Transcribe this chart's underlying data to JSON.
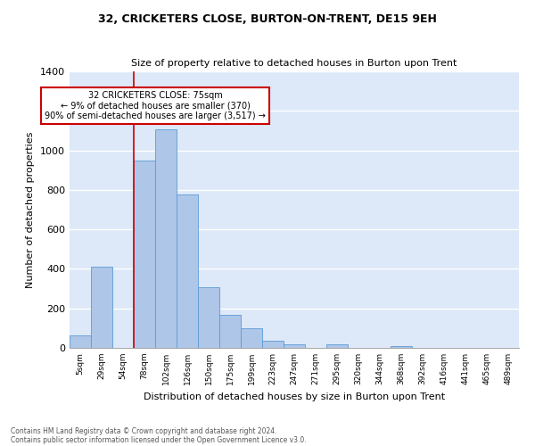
{
  "title": "32, CRICKETERS CLOSE, BURTON-ON-TRENT, DE15 9EH",
  "subtitle": "Size of property relative to detached houses in Burton upon Trent",
  "xlabel": "Distribution of detached houses by size in Burton upon Trent",
  "ylabel": "Number of detached properties",
  "categories": [
    "5sqm",
    "29sqm",
    "54sqm",
    "78sqm",
    "102sqm",
    "126sqm",
    "150sqm",
    "175sqm",
    "199sqm",
    "223sqm",
    "247sqm",
    "271sqm",
    "295sqm",
    "320sqm",
    "344sqm",
    "368sqm",
    "392sqm",
    "416sqm",
    "441sqm",
    "465sqm",
    "489sqm"
  ],
  "values": [
    65,
    410,
    0,
    950,
    1105,
    775,
    305,
    165,
    100,
    35,
    18,
    0,
    18,
    0,
    0,
    10,
    0,
    0,
    0,
    0,
    0
  ],
  "bar_color": "#aec6e8",
  "bar_edge_color": "#5b9bd5",
  "bg_color": "#dde8f8",
  "grid_color": "#ffffff",
  "vline_color": "#cc0000",
  "annotation_text": "32 CRICKETERS CLOSE: 75sqm\n← 9% of detached houses are smaller (370)\n90% of semi-detached houses are larger (3,517) →",
  "annotation_box_color": "#cc0000",
  "footer1": "Contains HM Land Registry data © Crown copyright and database right 2024.",
  "footer2": "Contains public sector information licensed under the Open Government Licence v3.0.",
  "ylim": [
    0,
    1400
  ],
  "yticks": [
    0,
    200,
    400,
    600,
    800,
    1000,
    1200,
    1400
  ],
  "vline_pos": 2.5
}
